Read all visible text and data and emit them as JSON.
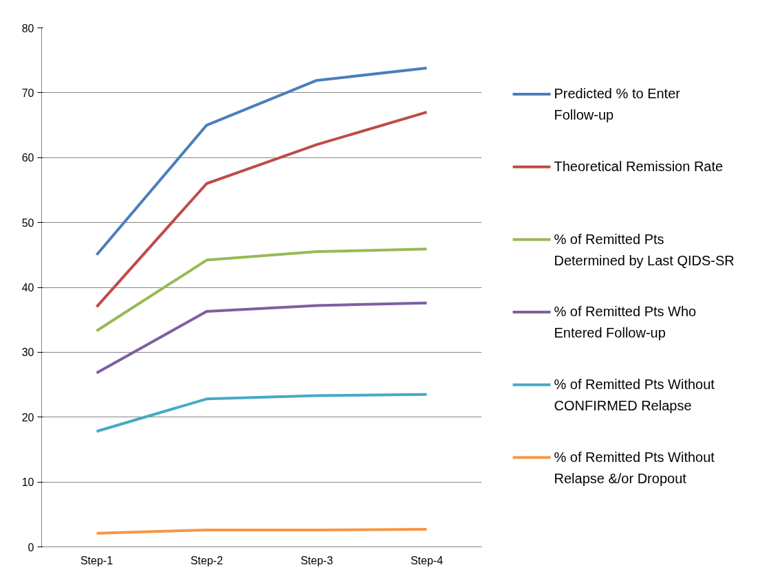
{
  "chart_data": {
    "type": "line",
    "categories": [
      "Step-1",
      "Step-2",
      "Step-3",
      "Step-4"
    ],
    "series": [
      {
        "name": "Predicted % to Enter Follow-up",
        "color": "#4a7ebb",
        "values": [
          45,
          65,
          71.9,
          73.8
        ]
      },
      {
        "name": "Theoretical Remission Rate",
        "color": "#be4b48",
        "values": [
          37,
          56,
          62,
          67
        ]
      },
      {
        "name": "% of Remitted Pts Determined by Last QIDS-SR",
        "color": "#98b954",
        "values": [
          33.3,
          44.2,
          45.5,
          45.9
        ]
      },
      {
        "name": "% of Remitted Pts Who Entered Follow-up",
        "color": "#7d60a0",
        "values": [
          26.8,
          36.3,
          37.2,
          37.6
        ]
      },
      {
        "name": "% of Remitted Pts Without CONFIRMED Relapse",
        "color": "#46aac5",
        "values": [
          17.8,
          22.8,
          23.3,
          23.5
        ]
      },
      {
        "name": "% of Remitted Pts Without Relapse &/or Dropout",
        "color": "#f79646",
        "values": [
          2.1,
          2.6,
          2.6,
          2.7
        ]
      }
    ],
    "ylim": [
      0,
      80
    ],
    "yticks": [
      0,
      10,
      20,
      30,
      40,
      50,
      60,
      70,
      80
    ],
    "grid": "y",
    "legend": "right",
    "marker": "none",
    "line_style": "solid"
  }
}
